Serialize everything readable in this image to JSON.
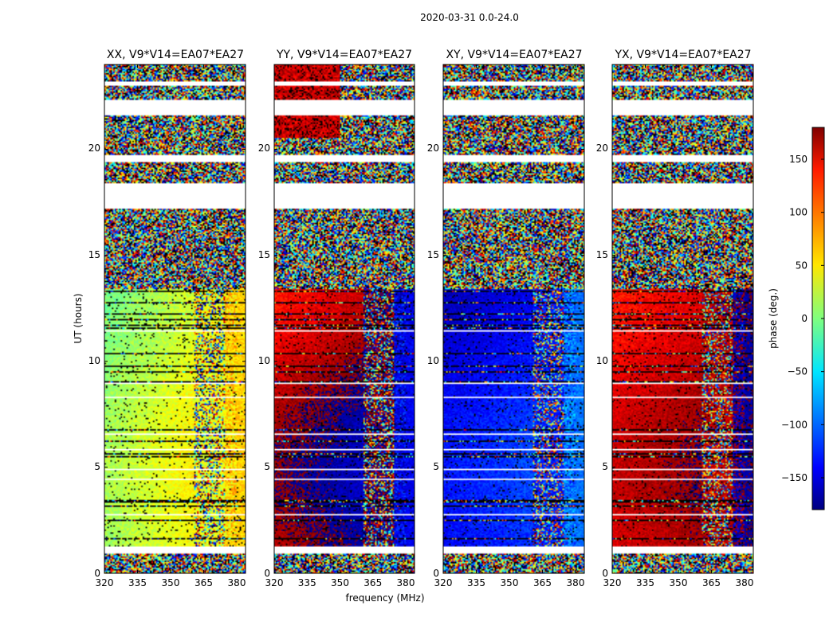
{
  "chart_data": {
    "type": "heatmap",
    "suptitle": "2020-03-31 0.0-24.0",
    "xlabel": "frequency (MHz)",
    "ylabel": "UT (hours)",
    "x_ticks": [
      "320",
      "335",
      "350",
      "365",
      "380"
    ],
    "y_ticks": [
      "0",
      "5",
      "10",
      "15",
      "20"
    ],
    "xlim": [
      320,
      384
    ],
    "ylim": [
      0,
      24
    ],
    "colormap": "jet",
    "colorbar": {
      "label": "phase (deg.)",
      "range": [
        -180,
        180
      ],
      "ticks": [
        "150",
        "100",
        "50",
        "0",
        "−50",
        "−100",
        "−150"
      ],
      "tick_values": [
        150,
        100,
        50,
        0,
        -50,
        -100,
        -150
      ]
    },
    "flagged_ut_bands": [
      [
        1.0,
        1.3
      ],
      [
        17.2,
        18.4
      ],
      [
        19.4,
        19.7
      ],
      [
        21.6,
        22.3
      ],
      [
        23.0,
        23.2
      ]
    ],
    "bandpass_edges_mhz": [
      361,
      375,
      380
    ],
    "panels": [
      {
        "title": "XX, V9*V14=EA07*EA27",
        "low_band_phase_deg": 5,
        "mid_band_phase_deg": 40,
        "high_band_phase_deg": 60,
        "phase_trend_with_ut_deg": 10,
        "night_phase_deg": 0
      },
      {
        "title": "YY, V9*V14=EA07*EA27",
        "low_band_phase_deg": 150,
        "mid_band_phase_deg": 180,
        "high_band_phase_deg": -140,
        "phase_trend_with_ut_deg": 25,
        "night_phase_deg": 160
      },
      {
        "title": "XY, V9*V14=EA07*EA27",
        "low_band_phase_deg": -145,
        "mid_band_phase_deg": -125,
        "high_band_phase_deg": -95,
        "phase_trend_with_ut_deg": 15,
        "night_phase_deg": -140
      },
      {
        "title": "YX, V9*V14=EA07*EA27",
        "low_band_phase_deg": 140,
        "mid_band_phase_deg": 160,
        "high_band_phase_deg": -170,
        "phase_trend_with_ut_deg": 15,
        "night_phase_deg": 150
      }
    ]
  }
}
